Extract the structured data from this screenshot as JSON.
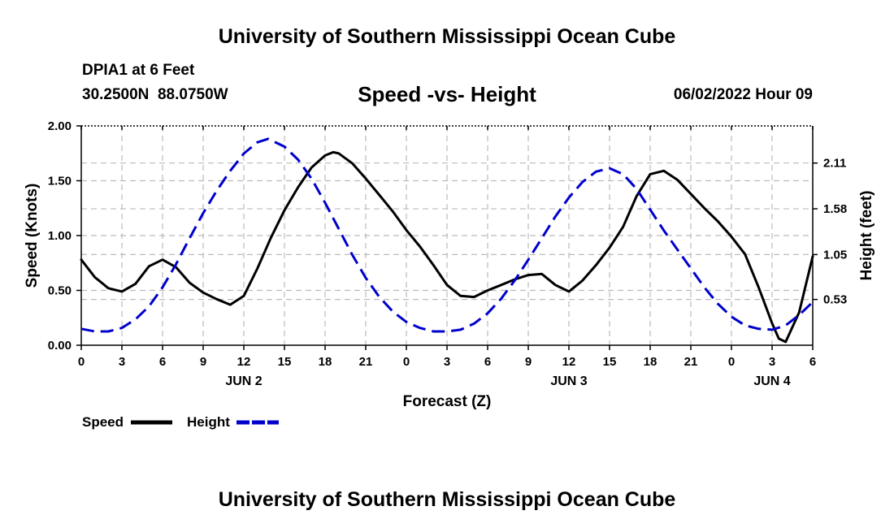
{
  "header": {
    "title": "University of Southern Mississippi Ocean Cube",
    "station": "DPIA1 at 6 Feet",
    "coords": "30.2500N  88.0750W",
    "chart_title": "Speed -vs- Height",
    "datetime": "06/02/2022 Hour 09"
  },
  "footer": {
    "title": "University of Southern Mississippi Ocean Cube"
  },
  "legend": {
    "speed_label": "Speed",
    "height_label": "Height"
  },
  "colors": {
    "speed": "#000000",
    "height": "#0000cc",
    "grid": "#bbbbbb"
  },
  "chart_data": {
    "type": "line",
    "title": "Speed -vs- Height",
    "xlabel": "Forecast (Z)",
    "ylabel": "Speed (Knots)",
    "y2label": "Height (feet)",
    "xlim": [
      0,
      54
    ],
    "ylim": [
      0,
      2.0
    ],
    "y2lim": [
      0.0,
      2.54
    ],
    "x_ticks": [
      0,
      3,
      6,
      9,
      12,
      15,
      18,
      21,
      24,
      27,
      30,
      33,
      36,
      39,
      42,
      45,
      48,
      51,
      54
    ],
    "x_tick_labels": [
      "0",
      "3",
      "6",
      "9",
      "12",
      "15",
      "18",
      "21",
      "0",
      "3",
      "6",
      "9",
      "12",
      "15",
      "18",
      "21",
      "0",
      "3",
      "6"
    ],
    "y_ticks": [
      0,
      0.5,
      1.0,
      1.5,
      2.0
    ],
    "y_tick_labels": [
      "0.00",
      "0.50",
      "1.00",
      "1.50",
      "2.00"
    ],
    "y2_ticks": [
      0.53,
      1.05,
      1.58,
      2.11
    ],
    "y2_tick_labels": [
      "0.53",
      "1.05",
      "1.58",
      "2.11"
    ],
    "day_labels": [
      {
        "x": 12,
        "label": "JUN 2"
      },
      {
        "x": 36,
        "label": "JUN 3"
      },
      {
        "x": 51,
        "label": "JUN 4"
      }
    ],
    "grid": true,
    "legend_position": "bottom-left",
    "series": [
      {
        "name": "Speed",
        "axis": "left",
        "style": "solid",
        "x": [
          0,
          1,
          2,
          3,
          4,
          5,
          6,
          7,
          8,
          9,
          10,
          11,
          12,
          13,
          14,
          15,
          16,
          17,
          18,
          18.6,
          19,
          20,
          21,
          22,
          23,
          24,
          25,
          26,
          27,
          28,
          29,
          30,
          31,
          32,
          33,
          34,
          35,
          36,
          37,
          38,
          39,
          40,
          41,
          42,
          43,
          44,
          45,
          46,
          47,
          48,
          49,
          50,
          51,
          51.5,
          52,
          53,
          54
        ],
        "y": [
          0.78,
          0.62,
          0.52,
          0.49,
          0.56,
          0.72,
          0.78,
          0.71,
          0.57,
          0.48,
          0.42,
          0.37,
          0.45,
          0.7,
          0.98,
          1.23,
          1.44,
          1.62,
          1.73,
          1.76,
          1.75,
          1.66,
          1.52,
          1.37,
          1.22,
          1.05,
          0.9,
          0.73,
          0.55,
          0.45,
          0.44,
          0.5,
          0.55,
          0.6,
          0.64,
          0.65,
          0.55,
          0.49,
          0.59,
          0.73,
          0.89,
          1.08,
          1.36,
          1.56,
          1.59,
          1.51,
          1.38,
          1.25,
          1.13,
          0.99,
          0.83,
          0.53,
          0.2,
          0.06,
          0.03,
          0.3,
          0.81
        ]
      },
      {
        "name": "Height",
        "axis": "right",
        "style": "dashed",
        "x": [
          0,
          1,
          2,
          3,
          4,
          5,
          6,
          7,
          8,
          9,
          10,
          11,
          12,
          13,
          13.8,
          15,
          16,
          17,
          18,
          19,
          20,
          21,
          22,
          23,
          24,
          25,
          26,
          27,
          28,
          29,
          30,
          31,
          32,
          33,
          34,
          35,
          36,
          37,
          38,
          39,
          40,
          41,
          42,
          43,
          44,
          45,
          46,
          47,
          48,
          49,
          50,
          51,
          52,
          53,
          54
        ],
        "y": [
          0.19,
          0.16,
          0.16,
          0.2,
          0.3,
          0.45,
          0.67,
          0.94,
          1.24,
          1.53,
          1.79,
          2.02,
          2.22,
          2.35,
          2.39,
          2.3,
          2.15,
          1.93,
          1.65,
          1.35,
          1.05,
          0.78,
          0.56,
          0.39,
          0.27,
          0.2,
          0.16,
          0.16,
          0.18,
          0.25,
          0.37,
          0.54,
          0.75,
          0.99,
          1.24,
          1.49,
          1.71,
          1.89,
          2.01,
          2.05,
          1.98,
          1.81,
          1.57,
          1.33,
          1.11,
          0.89,
          0.67,
          0.48,
          0.33,
          0.23,
          0.19,
          0.18,
          0.23,
          0.35,
          0.5
        ]
      }
    ]
  }
}
